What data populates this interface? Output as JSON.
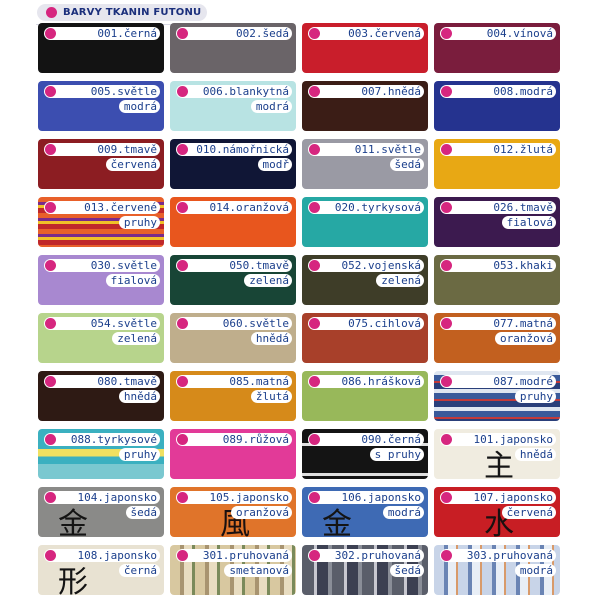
{
  "header": {
    "title": "BARVY TKANIN FUTONU"
  },
  "swatches": [
    {
      "l1": "001.černá",
      "l2": "",
      "color": "#131313",
      "icon": "swatch-black"
    },
    {
      "l1": "002.šedá",
      "l2": "",
      "color": "#6a6468",
      "icon": "swatch-grey"
    },
    {
      "l1": "003.červená",
      "l2": "",
      "color": "#c91e2b",
      "icon": "swatch-red"
    },
    {
      "l1": "004.vínová",
      "l2": "",
      "color": "#7a1d3d",
      "icon": "swatch-wine"
    },
    {
      "l1": "005.světle",
      "l2": "modrá",
      "color": "#3c4eb0",
      "icon": "swatch-light-blue"
    },
    {
      "l1": "006.blankytná",
      "l2": "modrá",
      "color": "#b8e3e3",
      "icon": "swatch-sky-blue"
    },
    {
      "l1": "007.hnědá",
      "l2": "",
      "color": "#3b1d16",
      "icon": "swatch-brown"
    },
    {
      "l1": "008.modrá",
      "l2": "",
      "color": "#25338f",
      "icon": "swatch-blue"
    },
    {
      "l1": "009.tmavě",
      "l2": "červená",
      "color": "#8c1d22",
      "icon": "swatch-dark-red"
    },
    {
      "l1": "010.námořnická",
      "l2": "modř",
      "color": "#101636",
      "icon": "swatch-navy"
    },
    {
      "l1": "011.světle",
      "l2": "šedá",
      "color": "#9a9aa4",
      "icon": "swatch-light-grey"
    },
    {
      "l1": "012.žlutá",
      "l2": "",
      "color": "#e8a814",
      "icon": "swatch-yellow"
    },
    {
      "l1": "013.červené",
      "l2": "pruhy",
      "color": "#d24a20",
      "icon": "swatch-red-stripes",
      "stripes": "red"
    },
    {
      "l1": "014.oranžová",
      "l2": "",
      "color": "#e8561e",
      "icon": "swatch-orange"
    },
    {
      "l1": "020.tyrkysová",
      "l2": "",
      "color": "#26a8a4",
      "icon": "swatch-turquoise"
    },
    {
      "l1": "026.tmavě",
      "l2": "fialová",
      "color": "#3c1a4f",
      "icon": "swatch-dark-purple"
    },
    {
      "l1": "030.světle",
      "l2": "fialová",
      "color": "#a888d0",
      "icon": "swatch-light-purple"
    },
    {
      "l1": "050.tmavě",
      "l2": "zelená",
      "color": "#184536",
      "icon": "swatch-dark-green"
    },
    {
      "l1": "052.vojenská",
      "l2": "zelená",
      "color": "#3e3d28",
      "icon": "swatch-army-green"
    },
    {
      "l1": "053.khaki",
      "l2": "",
      "color": "#6b6a43",
      "icon": "swatch-khaki"
    },
    {
      "l1": "054.světle",
      "l2": "zelená",
      "color": "#b7d48c",
      "icon": "swatch-light-green"
    },
    {
      "l1": "060.světle",
      "l2": "hnědá",
      "color": "#bfae8c",
      "icon": "swatch-light-brown"
    },
    {
      "l1": "075.cihlová",
      "l2": "",
      "color": "#a8402a",
      "icon": "swatch-brick"
    },
    {
      "l1": "077.matná",
      "l2": "oranžová",
      "color": "#c2601f",
      "icon": "swatch-matte-orange"
    },
    {
      "l1": "080.tmavě",
      "l2": "hnědá",
      "color": "#2e1a14",
      "icon": "swatch-dark-brown"
    },
    {
      "l1": "085.matná",
      "l2": "žlutá",
      "color": "#d68a1a",
      "icon": "swatch-matte-yellow"
    },
    {
      "l1": "086.hrášková",
      "l2": "",
      "color": "#98b85a",
      "icon": "swatch-pea-green"
    },
    {
      "l1": "087.modré",
      "l2": "pruhy",
      "color": "#3d5a9a",
      "icon": "swatch-blue-stripes",
      "stripes": "blue"
    },
    {
      "l1": "088.tyrkysové",
      "l2": "pruhy",
      "color": "#3bb0c0",
      "icon": "swatch-turquoise-stripes",
      "stripes": "turq"
    },
    {
      "l1": "089.růžová",
      "l2": "",
      "color": "#e23a98",
      "icon": "swatch-pink"
    },
    {
      "l1": "090.černá",
      "l2": "s pruhy",
      "color": "#141414",
      "icon": "swatch-black-stripes",
      "stripes": "black"
    },
    {
      "l1": "101.japonsko",
      "l2": "hnědá",
      "color": "#f0ece0",
      "icon": "swatch-japan-brown",
      "glyph": "主"
    },
    {
      "l1": "104.japonsko",
      "l2": "šedá",
      "color": "#8a8a88",
      "icon": "swatch-japan-grey",
      "glyph": "金"
    },
    {
      "l1": "105.japonsko",
      "l2": "oranžová",
      "color": "#e0742a",
      "icon": "swatch-japan-orange",
      "glyph": "風"
    },
    {
      "l1": "106.japonsko",
      "l2": "modrá",
      "color": "#3e6ab4",
      "icon": "swatch-japan-blue",
      "glyph": "金"
    },
    {
      "l1": "107.japonsko",
      "l2": "červená",
      "color": "#c81e24",
      "icon": "swatch-japan-red",
      "glyph": "水"
    },
    {
      "l1": "108.japonsko",
      "l2": "černá",
      "color": "#e8e2d2",
      "icon": "swatch-japan-black",
      "glyph": "形"
    },
    {
      "l1": "301.pruhovaná",
      "l2": "smetanová",
      "color": "#c8b48c",
      "icon": "swatch-striped-cream",
      "stripes": "cream"
    },
    {
      "l1": "302.pruhovaná",
      "l2": "šedá",
      "color": "#6b6e78",
      "icon": "swatch-striped-grey",
      "stripes": "grey"
    },
    {
      "l1": "303.pruhovaná",
      "l2": "modrá",
      "color": "#8fa4c4",
      "icon": "swatch-striped-blue",
      "stripes": "paleblue"
    }
  ]
}
